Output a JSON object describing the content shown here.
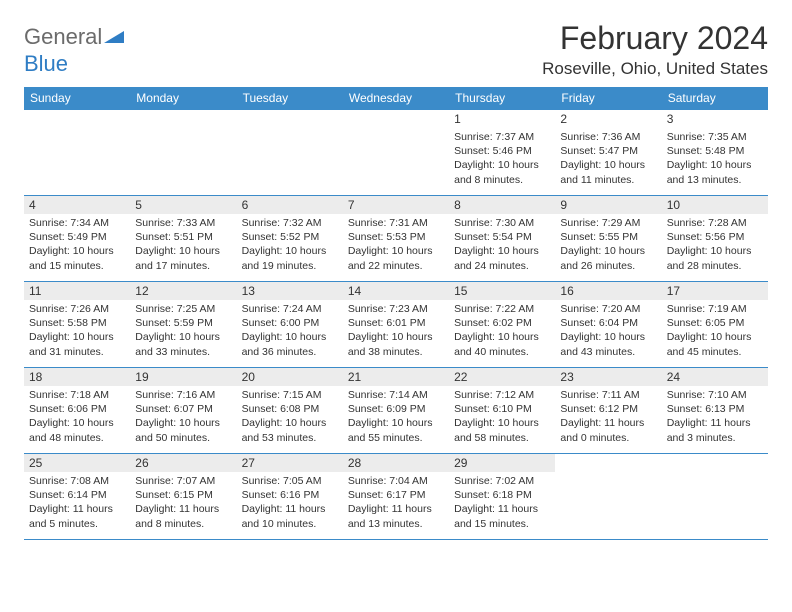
{
  "logo": {
    "gray": "General",
    "blue": "Blue"
  },
  "title": "February 2024",
  "location": "Roseville, Ohio, United States",
  "header_bg": "#3b8bc9",
  "shade_bg": "#ececec",
  "weekdays": [
    "Sunday",
    "Monday",
    "Tuesday",
    "Wednesday",
    "Thursday",
    "Friday",
    "Saturday"
  ],
  "weeks": [
    [
      null,
      null,
      null,
      null,
      {
        "d": "1",
        "sr": "7:37 AM",
        "ss": "5:46 PM",
        "dl": "10 hours and 8 minutes."
      },
      {
        "d": "2",
        "sr": "7:36 AM",
        "ss": "5:47 PM",
        "dl": "10 hours and 11 minutes."
      },
      {
        "d": "3",
        "sr": "7:35 AM",
        "ss": "5:48 PM",
        "dl": "10 hours and 13 minutes."
      }
    ],
    [
      {
        "d": "4",
        "sr": "7:34 AM",
        "ss": "5:49 PM",
        "dl": "10 hours and 15 minutes."
      },
      {
        "d": "5",
        "sr": "7:33 AM",
        "ss": "5:51 PM",
        "dl": "10 hours and 17 minutes."
      },
      {
        "d": "6",
        "sr": "7:32 AM",
        "ss": "5:52 PM",
        "dl": "10 hours and 19 minutes."
      },
      {
        "d": "7",
        "sr": "7:31 AM",
        "ss": "5:53 PM",
        "dl": "10 hours and 22 minutes."
      },
      {
        "d": "8",
        "sr": "7:30 AM",
        "ss": "5:54 PM",
        "dl": "10 hours and 24 minutes."
      },
      {
        "d": "9",
        "sr": "7:29 AM",
        "ss": "5:55 PM",
        "dl": "10 hours and 26 minutes."
      },
      {
        "d": "10",
        "sr": "7:28 AM",
        "ss": "5:56 PM",
        "dl": "10 hours and 28 minutes."
      }
    ],
    [
      {
        "d": "11",
        "sr": "7:26 AM",
        "ss": "5:58 PM",
        "dl": "10 hours and 31 minutes."
      },
      {
        "d": "12",
        "sr": "7:25 AM",
        "ss": "5:59 PM",
        "dl": "10 hours and 33 minutes."
      },
      {
        "d": "13",
        "sr": "7:24 AM",
        "ss": "6:00 PM",
        "dl": "10 hours and 36 minutes."
      },
      {
        "d": "14",
        "sr": "7:23 AM",
        "ss": "6:01 PM",
        "dl": "10 hours and 38 minutes."
      },
      {
        "d": "15",
        "sr": "7:22 AM",
        "ss": "6:02 PM",
        "dl": "10 hours and 40 minutes."
      },
      {
        "d": "16",
        "sr": "7:20 AM",
        "ss": "6:04 PM",
        "dl": "10 hours and 43 minutes."
      },
      {
        "d": "17",
        "sr": "7:19 AM",
        "ss": "6:05 PM",
        "dl": "10 hours and 45 minutes."
      }
    ],
    [
      {
        "d": "18",
        "sr": "7:18 AM",
        "ss": "6:06 PM",
        "dl": "10 hours and 48 minutes."
      },
      {
        "d": "19",
        "sr": "7:16 AM",
        "ss": "6:07 PM",
        "dl": "10 hours and 50 minutes."
      },
      {
        "d": "20",
        "sr": "7:15 AM",
        "ss": "6:08 PM",
        "dl": "10 hours and 53 minutes."
      },
      {
        "d": "21",
        "sr": "7:14 AM",
        "ss": "6:09 PM",
        "dl": "10 hours and 55 minutes."
      },
      {
        "d": "22",
        "sr": "7:12 AM",
        "ss": "6:10 PM",
        "dl": "10 hours and 58 minutes."
      },
      {
        "d": "23",
        "sr": "7:11 AM",
        "ss": "6:12 PM",
        "dl": "11 hours and 0 minutes."
      },
      {
        "d": "24",
        "sr": "7:10 AM",
        "ss": "6:13 PM",
        "dl": "11 hours and 3 minutes."
      }
    ],
    [
      {
        "d": "25",
        "sr": "7:08 AM",
        "ss": "6:14 PM",
        "dl": "11 hours and 5 minutes."
      },
      {
        "d": "26",
        "sr": "7:07 AM",
        "ss": "6:15 PM",
        "dl": "11 hours and 8 minutes."
      },
      {
        "d": "27",
        "sr": "7:05 AM",
        "ss": "6:16 PM",
        "dl": "11 hours and 10 minutes."
      },
      {
        "d": "28",
        "sr": "7:04 AM",
        "ss": "6:17 PM",
        "dl": "11 hours and 13 minutes."
      },
      {
        "d": "29",
        "sr": "7:02 AM",
        "ss": "6:18 PM",
        "dl": "11 hours and 15 minutes."
      },
      null,
      null
    ]
  ],
  "labels": {
    "sunrise": "Sunrise: ",
    "sunset": "Sunset: ",
    "daylight": "Daylight: "
  }
}
